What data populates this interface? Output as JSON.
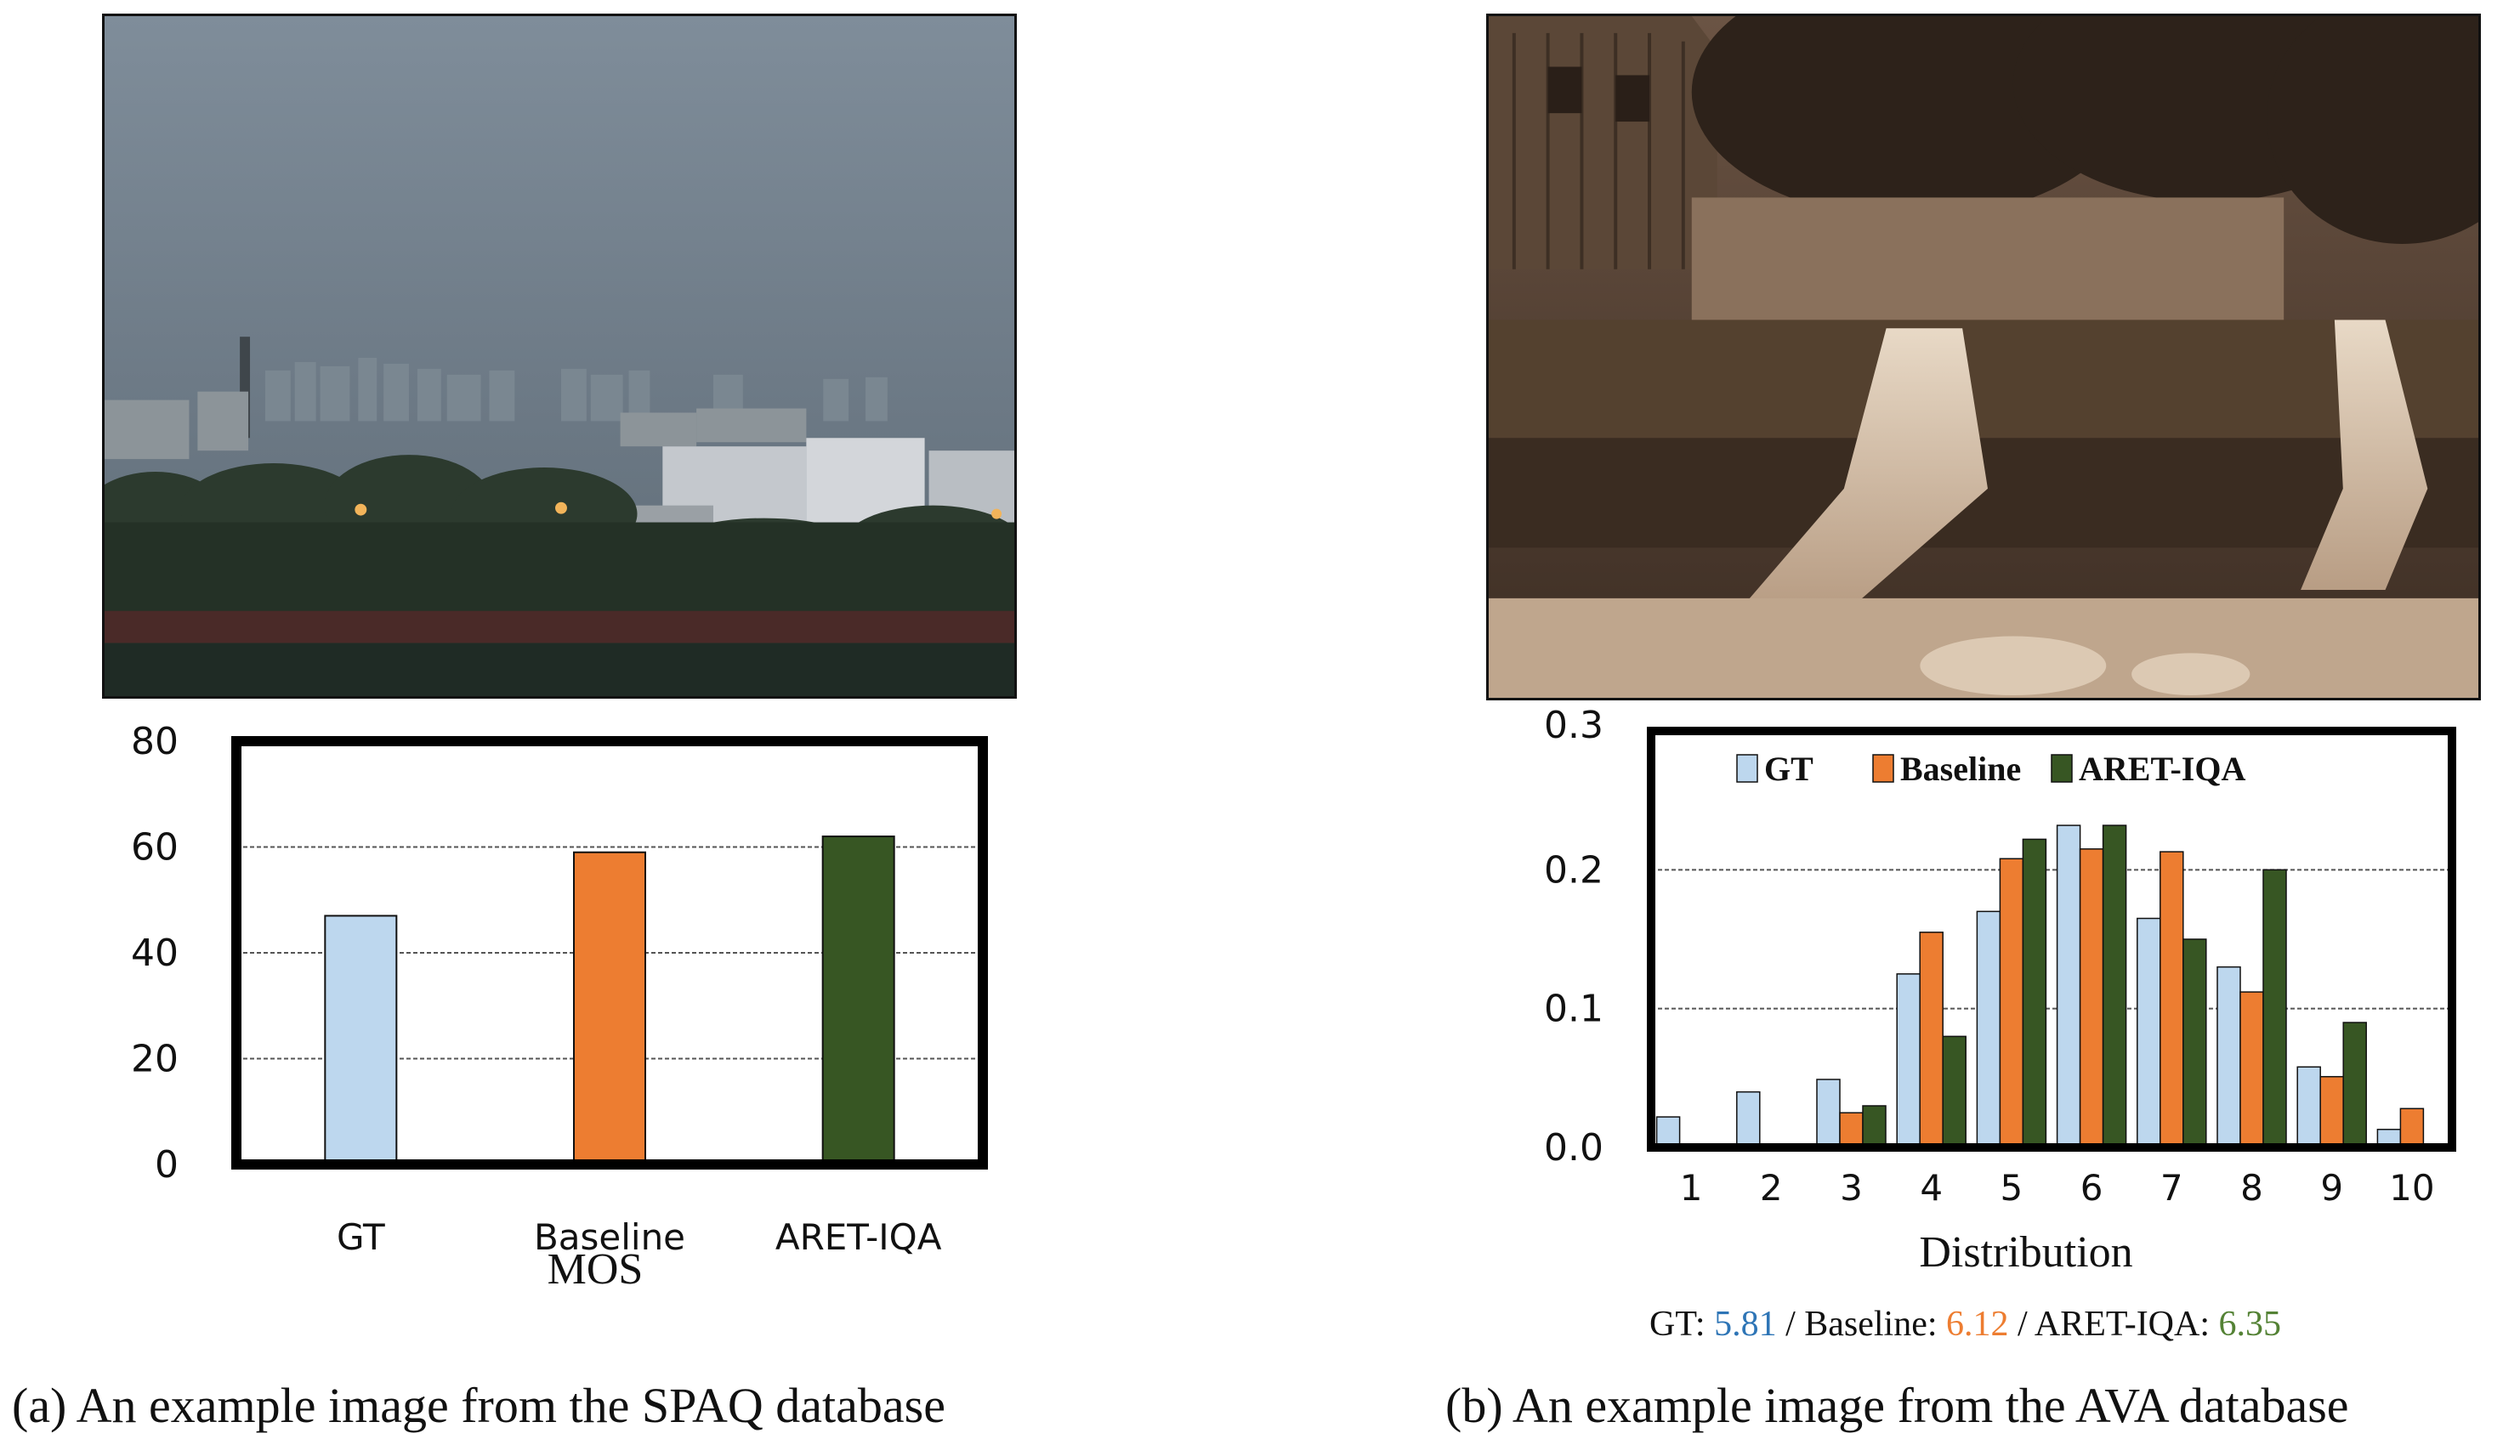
{
  "panels": [
    {
      "caption": "(a) An example image from the SPAQ database"
    },
    {
      "caption": "(b) An example image from the AVA database",
      "scores": [
        {
          "name": "GT",
          "value": "5.81",
          "color": "#2e75b6"
        },
        {
          "name": "Baseline",
          "value": "6.12",
          "color": "#ed7d31"
        },
        {
          "name": "ARET-IQA",
          "value": "6.35",
          "color": "#548235"
        }
      ]
    }
  ],
  "chart_data": [
    {
      "type": "bar",
      "categories": [
        "GT",
        "Baseline",
        "ARET-IQA"
      ],
      "values": [
        47,
        59,
        62
      ],
      "colors": [
        "#bdd7ee",
        "#ed7d31",
        "#375623"
      ],
      "xlabel": "MOS",
      "ylabel": "",
      "ylim": [
        0,
        80
      ],
      "yticks": [
        "0",
        "20",
        "40",
        "60",
        "80"
      ],
      "grid": true
    },
    {
      "type": "bar",
      "categories": [
        "1",
        "2",
        "3",
        "4",
        "5",
        "6",
        "7",
        "8",
        "9",
        "10"
      ],
      "series": [
        {
          "name": "GT",
          "color": "#bdd7ee",
          "values": [
            0.022,
            0.04,
            0.049,
            0.125,
            0.17,
            0.232,
            0.165,
            0.13,
            0.058,
            0.013
          ]
        },
        {
          "name": "Baseline",
          "color": "#ed7d31",
          "values": [
            0.0,
            0.002,
            0.025,
            0.155,
            0.208,
            0.215,
            0.213,
            0.112,
            0.051,
            0.028
          ]
        },
        {
          "name": "ARET-IQA",
          "color": "#375623",
          "values": [
            0.0,
            0.0,
            0.03,
            0.08,
            0.222,
            0.232,
            0.15,
            0.2,
            0.09,
            0.0
          ]
        }
      ],
      "xlabel": "Distribution",
      "ylabel": "",
      "ylim": [
        0,
        0.3
      ],
      "yticks": [
        "0.0",
        "0.1",
        "0.2",
        "0.3"
      ],
      "legend": "top",
      "grid": true
    }
  ]
}
